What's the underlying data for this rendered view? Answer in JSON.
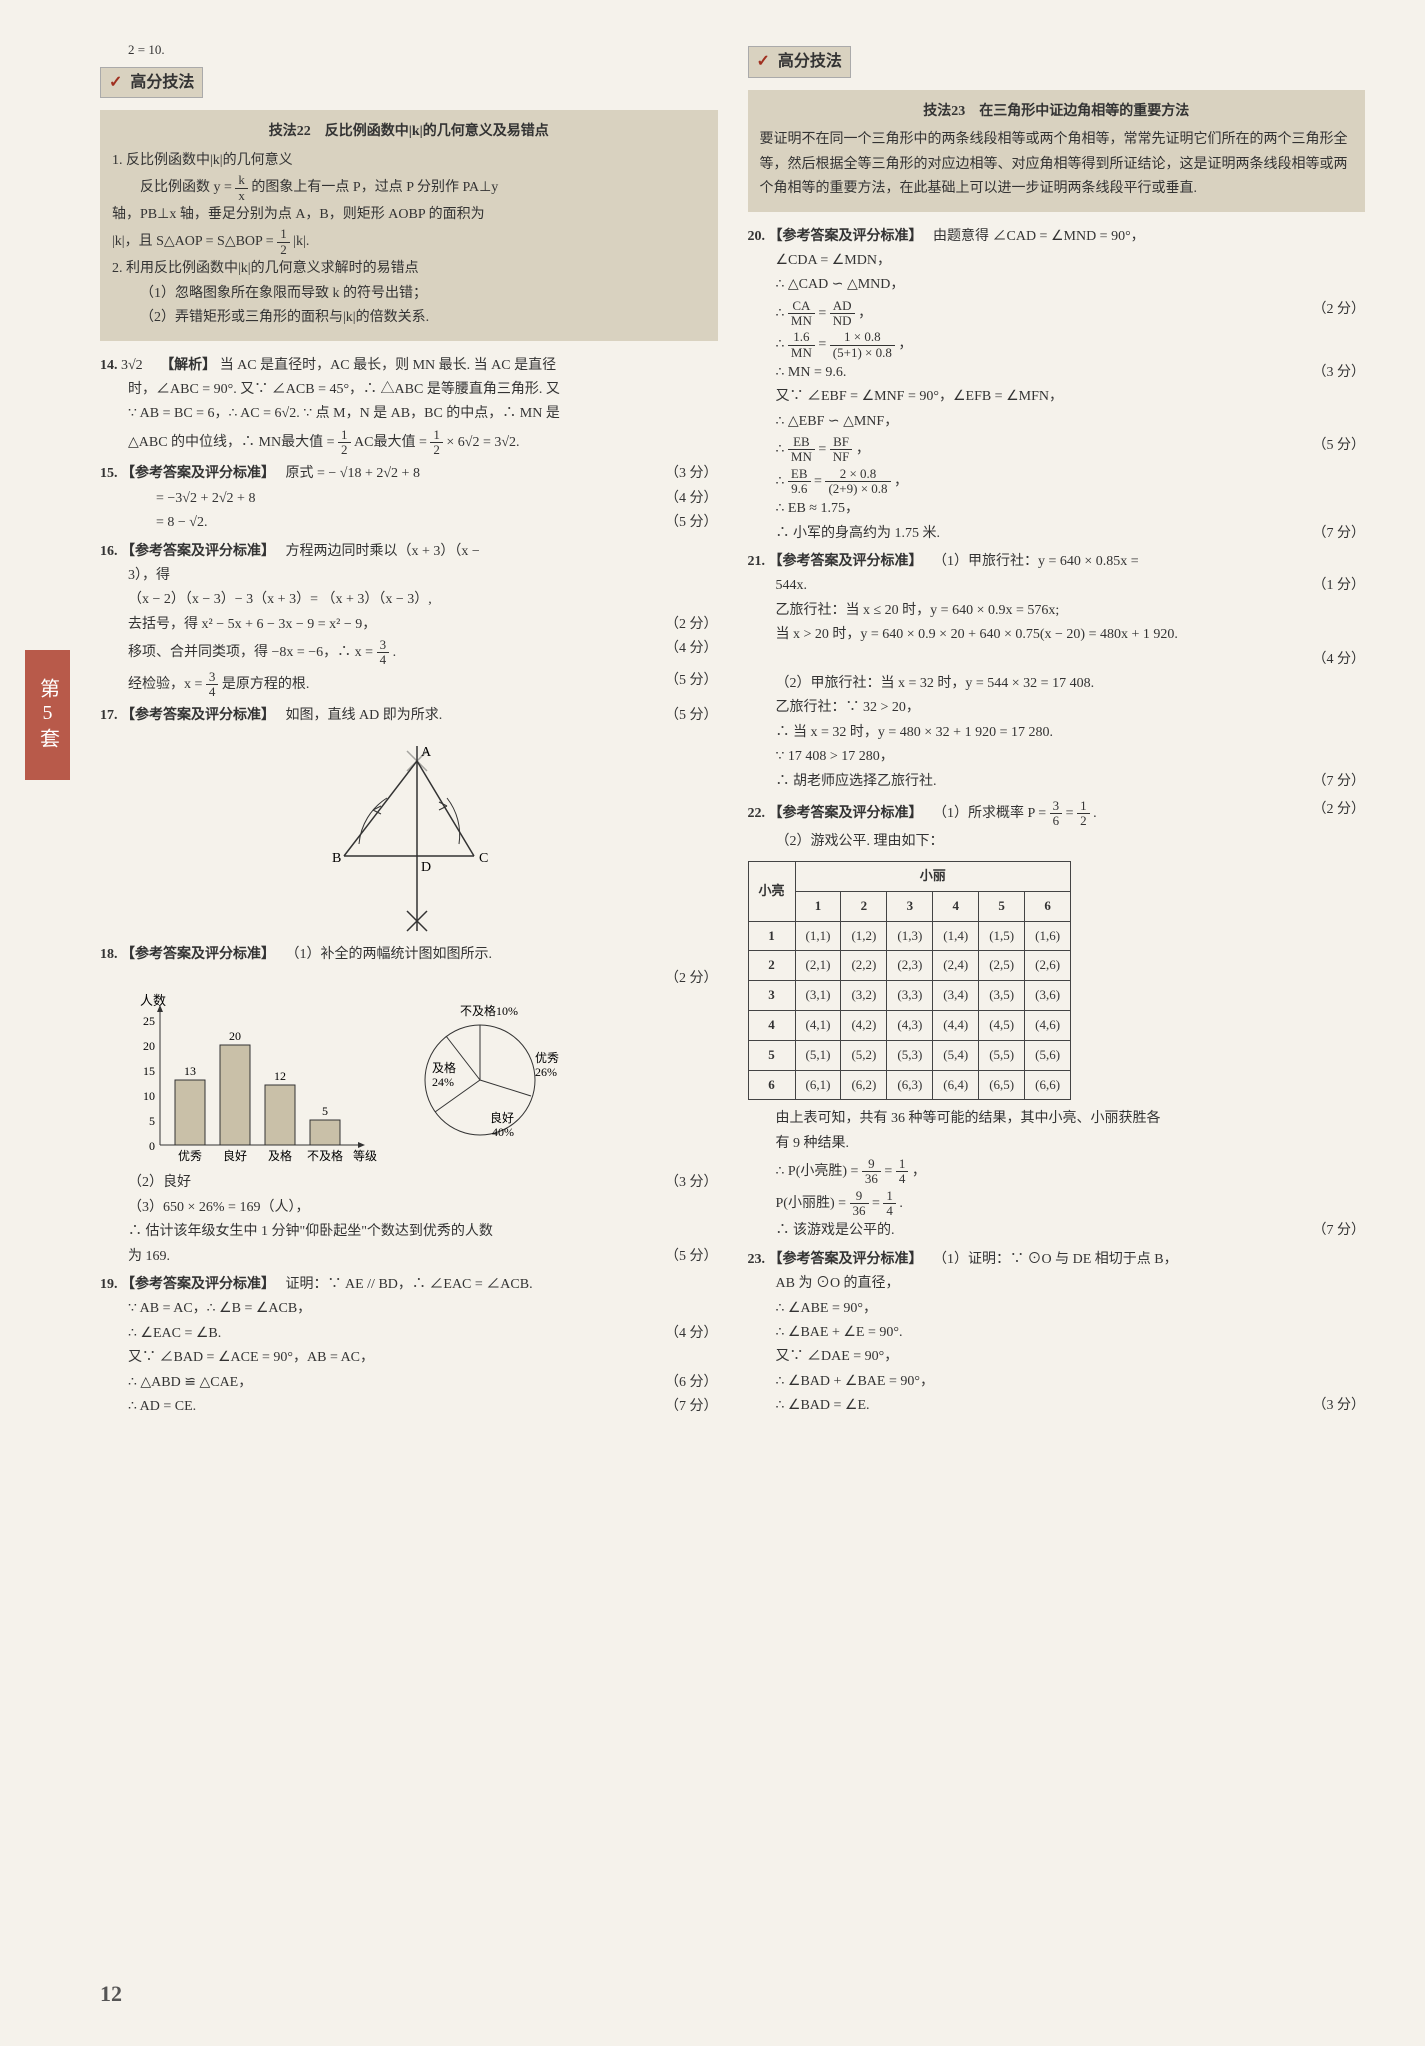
{
  "side_tab": "第5套",
  "page_number": "12",
  "left": {
    "top_eq": "2 = 10.",
    "gf_header": "高分技法",
    "gf_icon": "✓",
    "tech22": {
      "title": "技法22　反比例函数中|k|的几何意义及易错点",
      "l1": "1. 反比例函数中|k|的几何意义",
      "l2a": "反比例函数 y = ",
      "l2_frac_n": "k",
      "l2_frac_d": "x",
      "l2b": " 的图象上有一点 P，过点 P 分别作 PA⊥y",
      "l3": "轴，PB⊥x 轴，垂足分别为点 A，B，则矩形 AOBP 的面积为",
      "l4a": "|k|，且 S△AOP = S△BOP = ",
      "l4_frac_n": "1",
      "l4_frac_d": "2",
      "l4b": " |k|.",
      "l5": "2. 利用反比例函数中|k|的几何意义求解时的易错点",
      "l6": "（1）忽略图象所在象限而导致 k 的符号出错；",
      "l7": "（2）弄错矩形或三角形的面积与|k|的倍数关系."
    },
    "q14": {
      "num": "14.",
      "ans": "3√2",
      "tag": "【解析】",
      "l1": "当 AC 是直径时，AC 最长，则 MN 最长. 当 AC 是直径",
      "l2": "时，∠ABC = 90°. 又∵ ∠ACB = 45°，∴ △ABC 是等腰直角三角形. 又",
      "l3": "∵ AB = BC = 6，∴ AC = 6√2. ∵ 点 M，N 是 AB，BC 的中点，∴ MN 是",
      "l4a": "△ABC 的中位线，∴ MN最大值 = ",
      "l4_f1n": "1",
      "l4_f1d": "2",
      "l4b": " AC最大值 = ",
      "l4_f2n": "1",
      "l4_f2d": "2",
      "l4c": " × 6√2 = 3√2."
    },
    "q15": {
      "num": "15.",
      "tag": "【参考答案及评分标准】",
      "l1": "原式 = − √18 + 2√2 + 8",
      "s1": "（3 分）",
      "l2": "= −3√2 + 2√2 + 8",
      "s2": "（4 分）",
      "l3": "= 8 − √2.",
      "s3": "（5 分）"
    },
    "q16": {
      "num": "16.",
      "tag": "【参考答案及评分标准】",
      "l1": "方程两边同时乘以（x + 3）（x −",
      "l1b": "3），得",
      "l2": "（x − 2）（x − 3）− 3（x + 3）= （x + 3）（x − 3）,",
      "l3": "去括号，得 x² − 5x + 6 − 3x − 9 = x² − 9，",
      "s3": "（2 分）",
      "l4a": "移项、合并同类项，得 −8x = −6，∴ x = ",
      "l4_fn": "3",
      "l4_fd": "4",
      "l4b": ".",
      "s4": "（4 分）",
      "l5a": "经检验，x = ",
      "l5_fn": "3",
      "l5_fd": "4",
      "l5b": " 是原方程的根.",
      "s5": "（5 分）"
    },
    "q17": {
      "num": "17.",
      "tag": "【参考答案及评分标准】",
      "l1": "如图，直线 AD 即为所求.",
      "s1": "（5 分）",
      "fig_labels": {
        "A": "A",
        "B": "B",
        "C": "C",
        "D": "D"
      }
    },
    "q18": {
      "num": "18.",
      "tag": "【参考答案及评分标准】",
      "l1": "（1）补全的两幅统计图如图所示.",
      "s1": "（2 分）",
      "bar": {
        "y_label": "人数",
        "x_label": "等级",
        "y_ticks": [
          "0",
          "5",
          "10",
          "15",
          "20",
          "25"
        ],
        "categories": [
          "优秀",
          "良好",
          "及格",
          "不及格"
        ],
        "values": [
          13,
          20,
          12,
          5
        ],
        "bar_color": "#c9c0a8",
        "outline_color": "#444"
      },
      "pie": {
        "slices": [
          {
            "label": "不及格10%",
            "pct": 10,
            "color": "#f5f2eb"
          },
          {
            "label": "优秀26%",
            "pct": 26,
            "color": "#f5f2eb"
          },
          {
            "label": "良好40%",
            "pct": 40,
            "color": "#f5f2eb"
          },
          {
            "label": "及格24%",
            "pct": 24,
            "color": "#f5f2eb"
          }
        ],
        "stroke": "#444"
      },
      "l2": "（2）良好",
      "s2": "（3 分）",
      "l3": "（3）650 × 26% = 169（人），",
      "l4": "∴ 估计该年级女生中 1 分钟\"仰卧起坐\"个数达到优秀的人数",
      "l5": "为 169.",
      "s5": "（5 分）"
    },
    "q19": {
      "num": "19.",
      "tag": "【参考答案及评分标准】",
      "l1": "证明：∵ AE // BD，∴ ∠EAC = ∠ACB.",
      "l2": "∵ AB = AC，∴ ∠B = ∠ACB，",
      "l3": "∴ ∠EAC = ∠B.",
      "s3": "（4 分）",
      "l4": "又∵ ∠BAD = ∠ACE = 90°，AB = AC，",
      "l5": "∴ △ABD ≌ △CAE，",
      "s5": "（6 分）",
      "l6": "∴ AD = CE.",
      "s6": "（7 分）"
    }
  },
  "right": {
    "gf_header": "高分技法",
    "gf_icon": "✓",
    "tech23": {
      "title": "技法23　在三角形中证边角相等的重要方法",
      "body": "要证明不在同一个三角形中的两条线段相等或两个角相等，常常先证明它们所在的两个三角形全等，然后根据全等三角形的对应边相等、对应角相等得到所证结论，这是证明两条线段相等或两个角相等的重要方法，在此基础上可以进一步证明两条线段平行或垂直."
    },
    "q20": {
      "num": "20.",
      "tag": "【参考答案及评分标准】",
      "l1": "由题意得 ∠CAD = ∠MND = 90°，",
      "l2": "∠CDA = ∠MDN，",
      "l3": "∴ △CAD ∽ △MND，",
      "l4a": "∴ ",
      "l4_f1n": "CA",
      "l4_f1d": "MN",
      "l4b": " = ",
      "l4_f2n": "AD",
      "l4_f2d": "ND",
      "l4c": "，",
      "s4": "（2 分）",
      "l5a": "∴ ",
      "l5_f1n": "1.6",
      "l5_f1d": "MN",
      "l5b": " = ",
      "l5_f2n": "1 × 0.8",
      "l5_f2d": "(5+1) × 0.8",
      "l5c": "，",
      "l6": "∴ MN = 9.6.",
      "s6": "（3 分）",
      "l7": "又∵ ∠EBF = ∠MNF = 90°，∠EFB = ∠MFN，",
      "l8": "∴ △EBF ∽ △MNF，",
      "l9a": "∴ ",
      "l9_f1n": "EB",
      "l9_f1d": "MN",
      "l9b": " = ",
      "l9_f2n": "BF",
      "l9_f2d": "NF",
      "l9c": "，",
      "s9": "（5 分）",
      "l10a": "∴ ",
      "l10_f1n": "EB",
      "l10_f1d": "9.6",
      "l10b": " = ",
      "l10_f2n": "2 × 0.8",
      "l10_f2d": "(2+9) × 0.8",
      "l10c": "，",
      "l11": "∴ EB ≈ 1.75，",
      "l12": "∴ 小军的身高约为 1.75 米.",
      "s12": "（7 分）"
    },
    "q21": {
      "num": "21.",
      "tag": "【参考答案及评分标准】",
      "l1": "（1）甲旅行社：y = 640 × 0.85x =",
      "l1b": "544x.",
      "s1": "（1 分）",
      "l2": "乙旅行社：当 x ≤ 20 时，y = 640 × 0.9x = 576x;",
      "l3": "当 x > 20 时，y = 640 × 0.9 × 20 + 640 × 0.75(x − 20) = 480x + 1 920.",
      "s3": "（4 分）",
      "l4": "（2）甲旅行社：当 x = 32 时，y = 544 × 32 = 17 408.",
      "l5": "乙旅行社：∵ 32 > 20，",
      "l6": "∴ 当 x = 32 时，y = 480 × 32 + 1 920 = 17 280.",
      "l7": "∵ 17 408 > 17 280，",
      "l8": "∴ 胡老师应选择乙旅行社.",
      "s8": "（7 分）"
    },
    "q22": {
      "num": "22.",
      "tag": "【参考答案及评分标准】",
      "l1a": "（1）所求概率 P = ",
      "l1_f1n": "3",
      "l1_f1d": "6",
      "l1b": " = ",
      "l1_f2n": "1",
      "l1_f2d": "2",
      "l1c": ".",
      "s1": "（2 分）",
      "l2": "（2）游戏公平. 理由如下：",
      "table": {
        "row_head": "小亮",
        "col_head": "小丽",
        "cols": [
          "1",
          "2",
          "3",
          "4",
          "5",
          "6"
        ],
        "rows": [
          "1",
          "2",
          "3",
          "4",
          "5",
          "6"
        ]
      },
      "l3": "由上表可知，共有 36 种等可能的结果，其中小亮、小丽获胜各",
      "l3b": "有 9 种结果.",
      "l4a": "∴ P(小亮胜) = ",
      "l4_f1n": "9",
      "l4_f1d": "36",
      "l4b": " = ",
      "l4_f2n": "1",
      "l4_f2d": "4",
      "l4c": "，",
      "l5a": "P(小丽胜) = ",
      "l5_f1n": "9",
      "l5_f1d": "36",
      "l5b": " = ",
      "l5_f2n": "1",
      "l5_f2d": "4",
      "l5c": ".",
      "l6": "∴ 该游戏是公平的.",
      "s6": "（7 分）"
    },
    "q23": {
      "num": "23.",
      "tag": "【参考答案及评分标准】",
      "l1": "（1）证明：∵ ⊙O 与 DE 相切于点 B，",
      "l2": "AB 为 ⊙O 的直径，",
      "l3": "∴ ∠ABE = 90°，",
      "l4": "∴ ∠BAE + ∠E = 90°.",
      "l5": "又∵ ∠DAE = 90°，",
      "l6": "∴ ∠BAD + ∠BAE = 90°，",
      "l7": "∴ ∠BAD = ∠E.",
      "s7": "（3 分）"
    }
  }
}
